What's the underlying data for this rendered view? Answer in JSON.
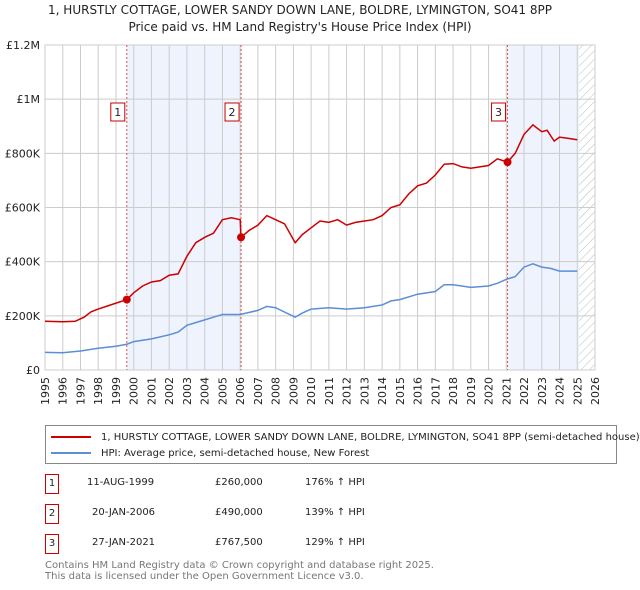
{
  "title": "1, HURSTLY COTTAGE, LOWER SANDY DOWN LANE, BOLDRE, LYMINGTON, SO41 8PP",
  "subtitle": "Price paid vs. HM Land Registry's House Price Index (HPI)",
  "colors": {
    "property": "#cc0000",
    "hpi": "#5b8ed6",
    "shade": "#eef3fd",
    "grid": "#cccccc"
  },
  "chart_data": {
    "type": "line",
    "title": "Price paid vs. HM Land Registry's House Price Index (HPI)",
    "xlim": [
      1995,
      2026
    ],
    "ylim": [
      0,
      1200000
    ],
    "x_ticks": [
      "1995",
      "1996",
      "1997",
      "1998",
      "1999",
      "2000",
      "2001",
      "2002",
      "2003",
      "2004",
      "2005",
      "2006",
      "2007",
      "2008",
      "2009",
      "2010",
      "2011",
      "2012",
      "2013",
      "2014",
      "2015",
      "2016",
      "2017",
      "2018",
      "2019",
      "2020",
      "2021",
      "2022",
      "2023",
      "2024",
      "2025",
      "2026"
    ],
    "y_ticks": [
      {
        "v": 0,
        "label": "£0"
      },
      {
        "v": 200000,
        "label": "£200K"
      },
      {
        "v": 400000,
        "label": "£400K"
      },
      {
        "v": 600000,
        "label": "£600K"
      },
      {
        "v": 800000,
        "label": "£800K"
      },
      {
        "v": 1000000,
        "label": "£1M"
      },
      {
        "v": 1200000,
        "label": "£1.2M"
      }
    ],
    "grid": true,
    "shaded_ranges": [
      [
        1999.61,
        2006.05
      ],
      [
        2021.07,
        2025.1
      ]
    ],
    "hatched_from": 2025.1,
    "series": [
      {
        "name": "1, HURSTLY COTTAGE, LOWER SANDY DOWN LANE, BOLDRE, LYMINGTON, SO41 8PP (semi-detached house)",
        "x": [
          1995,
          1996,
          1996.7,
          1997.2,
          1997.6,
          1998,
          1998.6,
          1999.61,
          2000,
          2000.5,
          2001,
          2001.5,
          2002,
          2002.5,
          2003,
          2003.5,
          2004,
          2004.5,
          2005,
          2005.5,
          2006,
          2006.05,
          2006.5,
          2007,
          2007.5,
          2008,
          2008.5,
          2009.1,
          2009.5,
          2010,
          2010.5,
          2011,
          2011.5,
          2012,
          2012.5,
          2013,
          2013.5,
          2014,
          2014.5,
          2015,
          2015.5,
          2016,
          2016.5,
          2017,
          2017.5,
          2018,
          2018.5,
          2019,
          2019.5,
          2020,
          2020.5,
          2021.07,
          2021.5,
          2022,
          2022.5,
          2023,
          2023.3,
          2023.7,
          2024,
          2024.5,
          2025
        ],
        "values": [
          180000,
          178000,
          180000,
          195000,
          215000,
          225000,
          238000,
          260000,
          285000,
          310000,
          325000,
          330000,
          350000,
          355000,
          420000,
          470000,
          490000,
          505000,
          555000,
          562000,
          555000,
          490000,
          515000,
          535000,
          570000,
          555000,
          540000,
          470000,
          500000,
          525000,
          550000,
          545000,
          555000,
          535000,
          545000,
          550000,
          555000,
          570000,
          600000,
          610000,
          650000,
          680000,
          690000,
          720000,
          760000,
          762000,
          750000,
          745000,
          750000,
          755000,
          780000,
          767500,
          800000,
          870000,
          905000,
          880000,
          885000,
          845000,
          860000,
          855000,
          850000
        ]
      },
      {
        "name": "HPI: Average price, semi-detached house, New Forest",
        "x": [
          1995,
          1996,
          1997,
          1998,
          1999,
          1999.61,
          2000,
          2001,
          2002,
          2002.5,
          2003,
          2004,
          2004.5,
          2005,
          2006,
          2007,
          2007.5,
          2008,
          2009.1,
          2009.5,
          2010,
          2011,
          2012,
          2013,
          2014,
          2014.5,
          2015,
          2016,
          2017,
          2017.5,
          2018,
          2019,
          2020,
          2020.5,
          2021,
          2021.5,
          2022,
          2022.5,
          2023,
          2023.5,
          2024,
          2025
        ],
        "values": [
          65000,
          64000,
          70000,
          80000,
          88000,
          95000,
          105000,
          115000,
          130000,
          140000,
          165000,
          185000,
          195000,
          205000,
          205000,
          220000,
          235000,
          230000,
          195000,
          210000,
          225000,
          230000,
          225000,
          230000,
          240000,
          255000,
          260000,
          280000,
          290000,
          315000,
          315000,
          305000,
          310000,
          320000,
          335000,
          345000,
          380000,
          392000,
          380000,
          375000,
          365000,
          365000
        ]
      }
    ],
    "sales": [
      {
        "id": "1",
        "x": 1999.61,
        "value": 260000
      },
      {
        "id": "2",
        "x": 2006.05,
        "value": 490000
      },
      {
        "id": "3",
        "x": 2021.07,
        "value": 767500
      }
    ]
  },
  "legend": {
    "property": "1, HURSTLY COTTAGE, LOWER SANDY DOWN LANE, BOLDRE, LYMINGTON, SO41 8PP (semi-detached house)",
    "hpi": "HPI: Average price, semi-detached house, New Forest"
  },
  "transactions": [
    {
      "id": "1",
      "date": "11-AUG-1999",
      "price": "£260,000",
      "hpi": "176% ↑ HPI"
    },
    {
      "id": "2",
      "date": "20-JAN-2006",
      "price": "£490,000",
      "hpi": "139% ↑ HPI"
    },
    {
      "id": "3",
      "date": "27-JAN-2021",
      "price": "£767,500",
      "hpi": "129% ↑ HPI"
    }
  ],
  "footer": {
    "line1": "Contains HM Land Registry data © Crown copyright and database right 2025.",
    "line2": "This data is licensed under the Open Government Licence v3.0."
  }
}
